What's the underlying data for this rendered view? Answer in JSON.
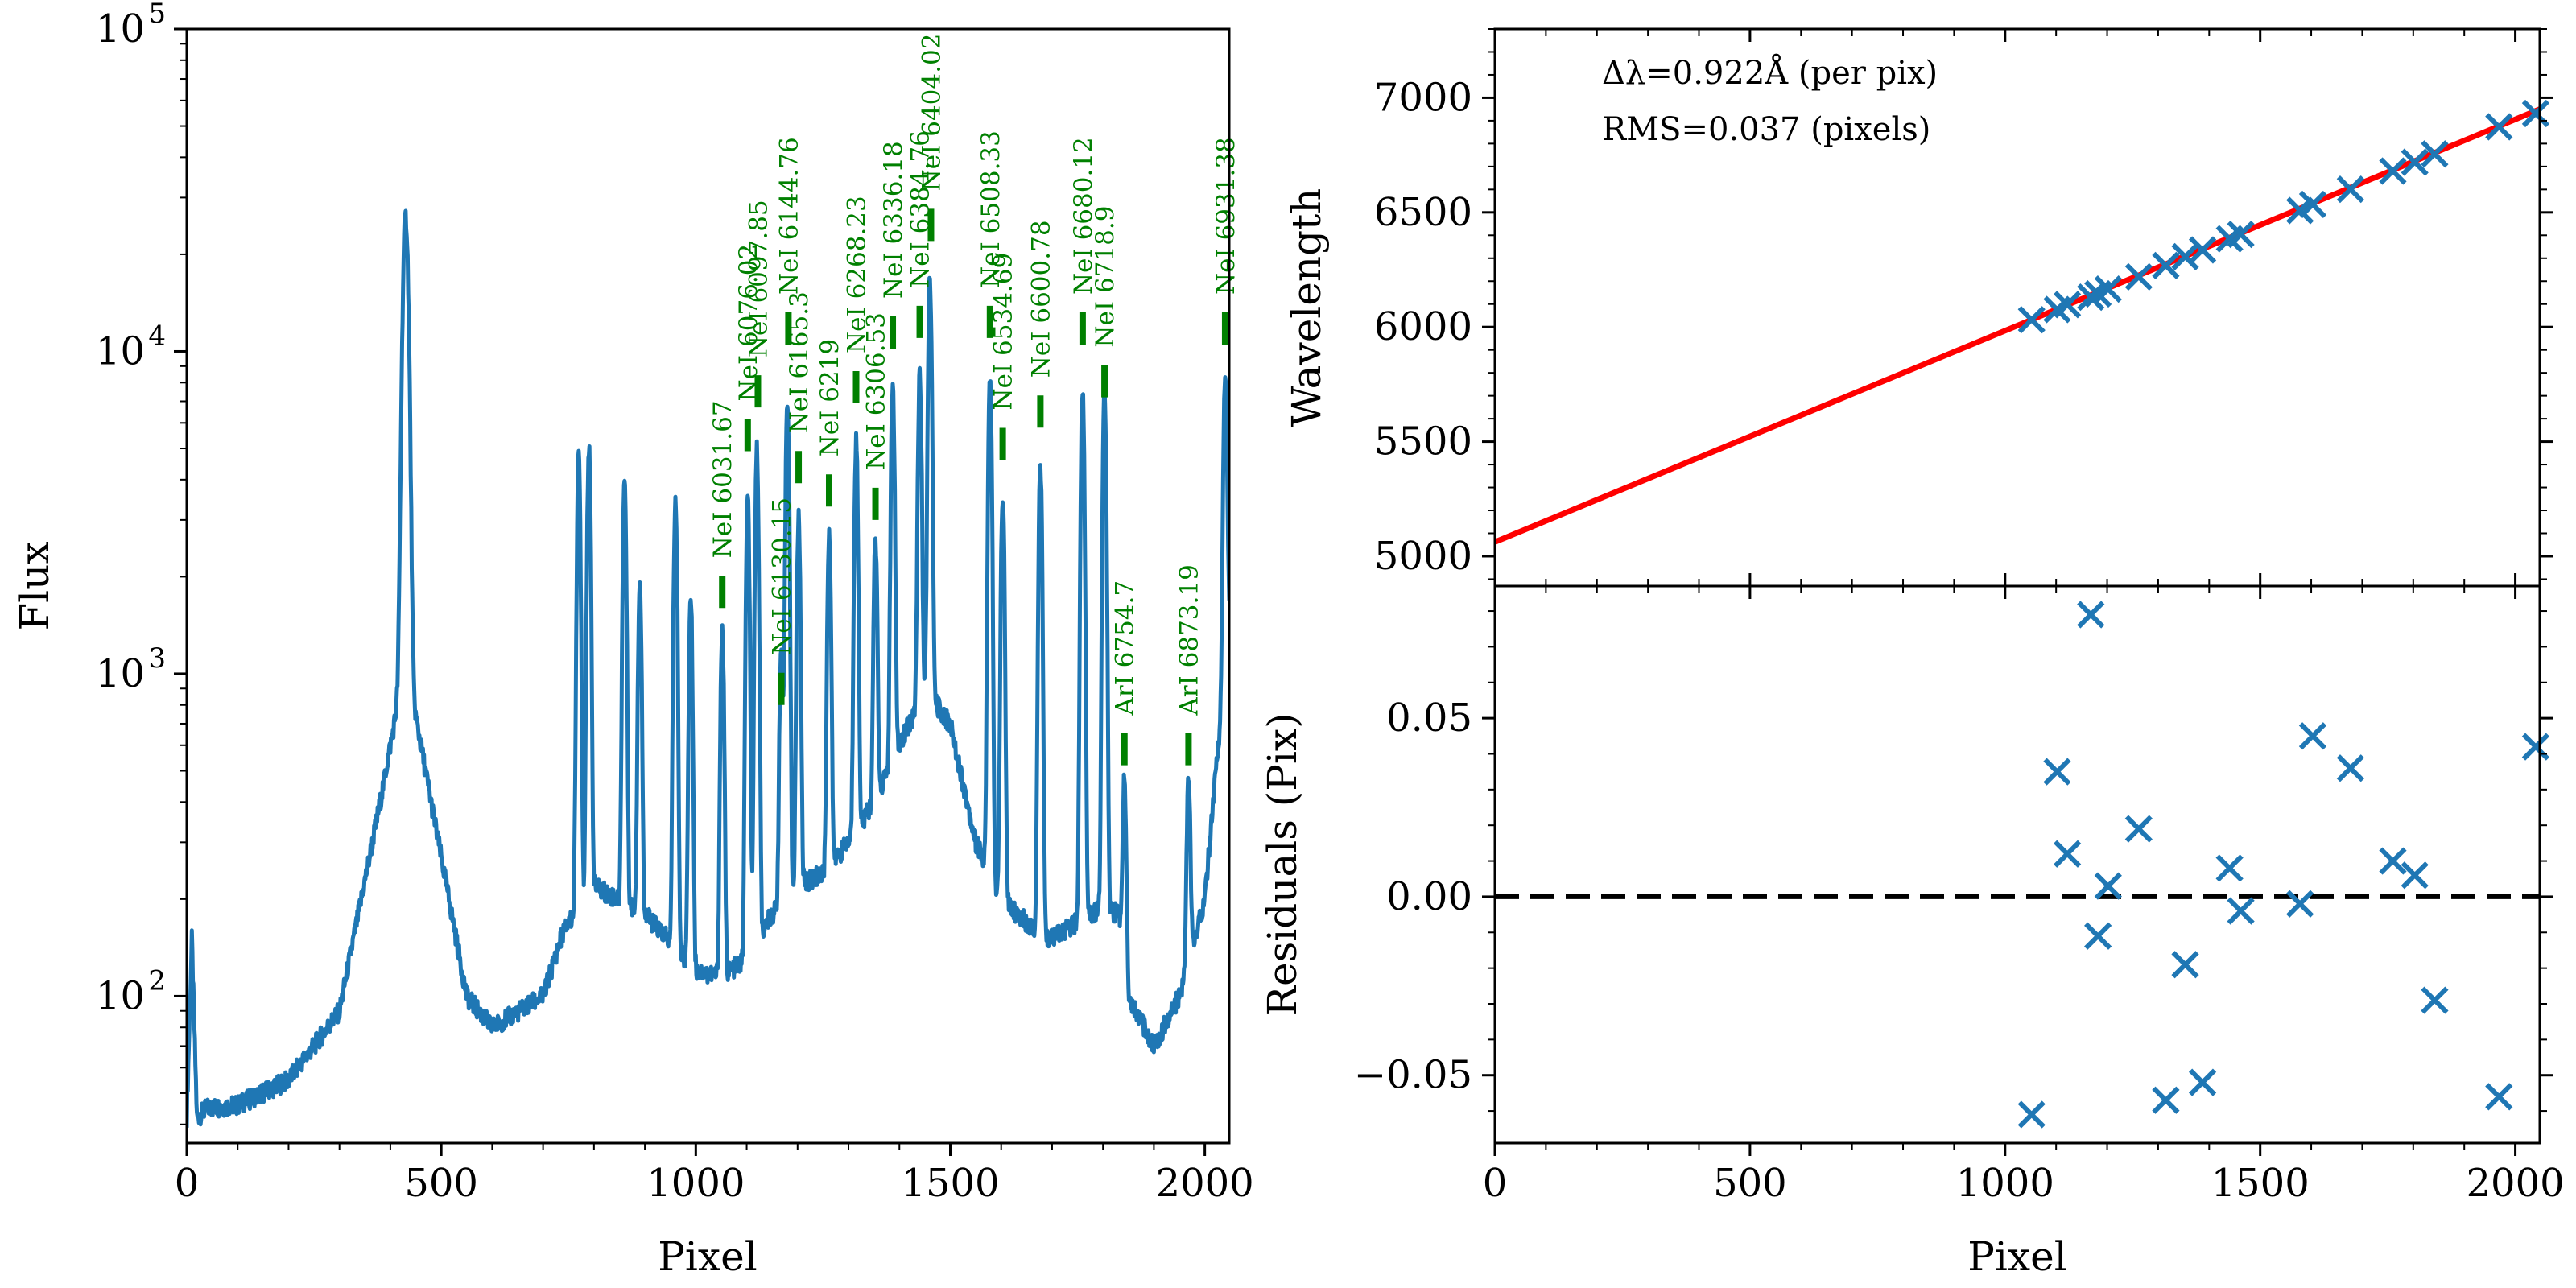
{
  "chart_data": [
    {
      "type": "line",
      "xlabel": "Pixel",
      "ylabel": "Flux",
      "xlim": [
        0,
        2048
      ],
      "ylim": [
        35,
        100000
      ],
      "yscale": "log",
      "x_ticks": [
        0,
        500,
        1000,
        1500,
        2000
      ],
      "x_tick_labels": [
        "0",
        "500",
        "1000",
        "1500",
        "2000"
      ],
      "y_ticks": [
        100,
        1000,
        10000,
        100000
      ],
      "y_tick_labels": [
        "10",
        "10",
        "10",
        "10"
      ],
      "y_tick_exponents": [
        "2",
        "3",
        "4",
        "5"
      ],
      "color": "#1f77b4",
      "baseline": {
        "x": [
          0,
          10,
          20,
          40,
          100,
          200,
          300,
          380,
          430,
          480,
          550,
          600,
          700,
          740,
          800,
          900,
          1000,
          1050,
          1100,
          1150,
          1200,
          1250,
          1300,
          1350,
          1400,
          1450,
          1500,
          1550,
          1600,
          1650,
          1700,
          1750,
          1800,
          1830,
          1850,
          1900,
          1950,
          2000,
          2048
        ],
        "y": [
          42,
          150,
          42,
          45,
          46,
          55,
          90,
          400,
          1100,
          400,
          100,
          80,
          100,
          160,
          220,
          180,
          120,
          115,
          130,
          180,
          220,
          240,
          300,
          400,
          600,
          900,
          700,
          300,
          200,
          170,
          150,
          170,
          190,
          180,
          100,
          70,
          100,
          200,
          1500
        ]
      },
      "peaks": [
        {
          "x": 430,
          "y": 25000,
          "w": 5
        },
        {
          "x": 770,
          "y": 4500,
          "w": 3
        },
        {
          "x": 790,
          "y": 4800,
          "w": 3
        },
        {
          "x": 860,
          "y": 3800,
          "w": 3
        },
        {
          "x": 890,
          "y": 1700,
          "w": 3
        },
        {
          "x": 960,
          "y": 3300,
          "w": 3
        },
        {
          "x": 990,
          "y": 1600,
          "w": 3
        },
        {
          "x": 1052,
          "y": 1250,
          "w": 3
        },
        {
          "x": 1102,
          "y": 3300,
          "w": 3
        },
        {
          "x": 1120,
          "y": 4800,
          "w": 3
        },
        {
          "x": 1168,
          "y": 1000,
          "w": 3
        },
        {
          "x": 1180,
          "y": 7000,
          "w": 3
        },
        {
          "x": 1202,
          "y": 2800,
          "w": 3
        },
        {
          "x": 1262,
          "y": 2500,
          "w": 3
        },
        {
          "x": 1315,
          "y": 5000,
          "w": 3
        },
        {
          "x": 1353,
          "y": 2200,
          "w": 3
        },
        {
          "x": 1387,
          "y": 7200,
          "w": 3
        },
        {
          "x": 1440,
          "y": 7500,
          "w": 3
        },
        {
          "x": 1460,
          "y": 16000,
          "w": 3
        },
        {
          "x": 1578,
          "y": 8000,
          "w": 3
        },
        {
          "x": 1603,
          "y": 3400,
          "w": 3
        },
        {
          "x": 1677,
          "y": 4200,
          "w": 3
        },
        {
          "x": 1760,
          "y": 7500,
          "w": 3
        },
        {
          "x": 1803,
          "y": 7300,
          "w": 3
        },
        {
          "x": 1842,
          "y": 350,
          "w": 3
        },
        {
          "x": 1968,
          "y": 350,
          "w": 3
        },
        {
          "x": 2040,
          "y": 7500,
          "w": 3
        }
      ],
      "lines": [
        {
          "label": "NeI 6031.67",
          "x": 1052,
          "y": 1600
        },
        {
          "label": "NeI 6076.02",
          "x": 1102,
          "y": 4900
        },
        {
          "label": "NeI 6097.85",
          "x": 1122,
          "y": 6700
        },
        {
          "label": "NeI 6130.15",
          "x": 1168,
          "y": 800
        },
        {
          "label": "NeI 6144.76",
          "x": 1182,
          "y": 10500
        },
        {
          "label": "NeI 6165.3",
          "x": 1202,
          "y": 3900
        },
        {
          "label": "NeI 6219",
          "x": 1262,
          "y": 3300
        },
        {
          "label": "NeI 6268.23",
          "x": 1315,
          "y": 6900
        },
        {
          "label": "NeI 6306.53",
          "x": 1353,
          "y": 3000
        },
        {
          "label": "NeI 6336.18",
          "x": 1387,
          "y": 10200
        },
        {
          "label": "NeI 6384.76",
          "x": 1440,
          "y": 11000
        },
        {
          "label": "NeI 6404.02",
          "x": 1462,
          "y": 22000
        },
        {
          "label": "NeI 6508.33",
          "x": 1578,
          "y": 11000
        },
        {
          "label": "NeI 6534.69",
          "x": 1603,
          "y": 4600
        },
        {
          "label": "NeI 6600.78",
          "x": 1677,
          "y": 5800
        },
        {
          "label": "NeI 6680.12",
          "x": 1760,
          "y": 10500
        },
        {
          "label": "NeI 6718.9",
          "x": 1803,
          "y": 7200
        },
        {
          "label": "ArI 6754.7",
          "x": 1842,
          "y": 520
        },
        {
          "label": "ArI 6873.19",
          "x": 1968,
          "y": 520
        },
        {
          "label": "NeI 6931.38",
          "x": 2040,
          "y": 10500
        }
      ]
    },
    {
      "type": "scatter",
      "ylabel": "Wavelength",
      "xlim": [
        0,
        2048
      ],
      "ylim": [
        4870,
        7300
      ],
      "y_ticks": [
        5000,
        5500,
        6000,
        6500,
        7000
      ],
      "y_tick_labels": [
        "5000",
        "5500",
        "6000",
        "6500",
        "7000"
      ],
      "annotations": [
        "Δλ=0.922Å (per pix)",
        "RMS=0.037 (pixels)"
      ],
      "fit": {
        "x": [
          0,
          2048
        ],
        "y": [
          5062,
          6950
        ],
        "color": "#ff0000"
      },
      "points": {
        "x": [
          1052,
          1102,
          1122,
          1168,
          1182,
          1202,
          1262,
          1315,
          1353,
          1387,
          1440,
          1462,
          1578,
          1603,
          1677,
          1760,
          1803,
          1842,
          1968,
          2040
        ],
        "y": [
          6031.67,
          6076.02,
          6097.85,
          6130.15,
          6144.76,
          6165.3,
          6219,
          6268.23,
          6306.53,
          6336.18,
          6384.76,
          6404.02,
          6508.33,
          6534.69,
          6600.78,
          6680.12,
          6718.9,
          6754.7,
          6873.19,
          6931.38
        ]
      },
      "color": "#1f77b4"
    },
    {
      "type": "scatter",
      "xlabel": "Pixel",
      "ylabel": "Residuals (Pix)",
      "xlim": [
        0,
        2048
      ],
      "ylim": [
        -0.069,
        0.087
      ],
      "x_ticks": [
        0,
        500,
        1000,
        1500,
        2000
      ],
      "x_tick_labels": [
        "0",
        "500",
        "1000",
        "1500",
        "2000"
      ],
      "y_ticks": [
        -0.05,
        0.0,
        0.05
      ],
      "y_tick_labels": [
        "−0.05",
        "0.00",
        "0.05"
      ],
      "zero_line": true,
      "points": {
        "x": [
          1052,
          1102,
          1122,
          1168,
          1182,
          1202,
          1262,
          1315,
          1353,
          1387,
          1440,
          1462,
          1578,
          1603,
          1677,
          1760,
          1803,
          1842,
          1968,
          2040
        ],
        "y": [
          -0.061,
          0.035,
          0.012,
          0.079,
          -0.011,
          0.003,
          0.019,
          -0.057,
          -0.019,
          -0.052,
          0.008,
          -0.004,
          -0.002,
          0.045,
          0.036,
          0.01,
          0.006,
          -0.029,
          -0.056,
          0.042
        ]
      },
      "color": "#1f77b4"
    }
  ]
}
